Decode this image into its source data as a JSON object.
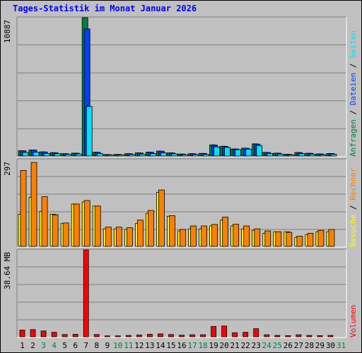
{
  "title": "Tages-Statistik im Monat Januar 2026",
  "colors": {
    "anfragen": "#008040",
    "dateien": "#0040ff",
    "seiten": "#00e0ff",
    "besuche": "#ffff00",
    "rechner": "#ff8000",
    "volumen": "#ff0000",
    "weekday_label": "#000000",
    "weekend_label": "#008040"
  },
  "chart_data": [
    {
      "type": "bar",
      "panel": "top",
      "ymax_label": "10887",
      "ylim": [
        0,
        10887
      ],
      "right_label_parts": [
        {
          "text": "Anfragen",
          "color": "#008040"
        },
        {
          "text": "Dateien",
          "color": "#0040ff"
        },
        {
          "text": "Seiten",
          "color": "#00e0ff"
        }
      ],
      "series": [
        {
          "name": "Anfragen",
          "color": "#008040",
          "values": [
            420,
            480,
            330,
            270,
            190,
            230,
            10887,
            300,
            120,
            130,
            190,
            250,
            310,
            390,
            250,
            160,
            190,
            210,
            880,
            770,
            560,
            620,
            960,
            290,
            230,
            140,
            280,
            220,
            170,
            200
          ]
        },
        {
          "name": "Dateien",
          "color": "#0040ff",
          "values": [
            410,
            470,
            320,
            260,
            180,
            220,
            10000,
            290,
            110,
            120,
            180,
            240,
            300,
            380,
            240,
            150,
            180,
            200,
            860,
            750,
            550,
            610,
            940,
            280,
            220,
            130,
            270,
            210,
            160,
            190
          ]
        },
        {
          "name": "Seiten",
          "color": "#00e0ff",
          "values": [
            280,
            300,
            200,
            180,
            130,
            160,
            3900,
            200,
            80,
            90,
            120,
            150,
            190,
            250,
            170,
            110,
            120,
            130,
            720,
            680,
            500,
            540,
            830,
            200,
            150,
            90,
            180,
            140,
            110,
            140
          ]
        }
      ],
      "grid": true
    },
    {
      "type": "bar",
      "panel": "middle",
      "ymax_label": "297",
      "ylim": [
        0,
        297
      ],
      "right_label_parts": [
        {
          "text": "Besuche",
          "color": "#ffff00"
        },
        {
          "text": "Rechner",
          "color": "#ff8000"
        }
      ],
      "series": [
        {
          "name": "Besuche",
          "color": "#ffff00",
          "values": [
            110,
            168,
            120,
            110,
            78,
            145,
            152,
            138,
            60,
            60,
            58,
            78,
            113,
            185,
            103,
            53,
            60,
            60,
            70,
            90,
            70,
            60,
            55,
            45,
            50,
            50,
            30,
            40,
            50,
            50
          ]
        },
        {
          "name": "Rechner",
          "color": "#ff8000",
          "values": [
            260,
            287,
            170,
            108,
            80,
            145,
            157,
            138,
            66,
            66,
            64,
            90,
            123,
            193,
            105,
            58,
            70,
            70,
            75,
            100,
            76,
            70,
            60,
            53,
            50,
            48,
            35,
            45,
            55,
            58
          ]
        }
      ],
      "grid": true
    },
    {
      "type": "bar",
      "panel": "bottom",
      "ymax_label": "38.64 MB",
      "ylim": [
        0,
        38.64
      ],
      "right_label_parts": [
        {
          "text": "Volumen",
          "color": "#ff0000"
        }
      ],
      "series": [
        {
          "name": "Volumen",
          "color": "#ff0000",
          "values": [
            3.0,
            3.2,
            2.6,
            2.0,
            1.0,
            1.1,
            38.64,
            1.0,
            0.4,
            0.4,
            0.6,
            0.8,
            1.1,
            1.3,
            1.0,
            0.7,
            0.9,
            0.9,
            4.6,
            4.8,
            1.8,
            2.0,
            3.6,
            0.9,
            0.6,
            0.5,
            0.9,
            0.6,
            0.5,
            0.6
          ]
        }
      ],
      "grid": true
    }
  ],
  "days": [
    {
      "label": "1",
      "weekend": false
    },
    {
      "label": "2",
      "weekend": false
    },
    {
      "label": "3",
      "weekend": true
    },
    {
      "label": "4",
      "weekend": true
    },
    {
      "label": "5",
      "weekend": false
    },
    {
      "label": "6",
      "weekend": false
    },
    {
      "label": "7",
      "weekend": false
    },
    {
      "label": "8",
      "weekend": false
    },
    {
      "label": "9",
      "weekend": false
    },
    {
      "label": "10",
      "weekend": true
    },
    {
      "label": "11",
      "weekend": true
    },
    {
      "label": "12",
      "weekend": false
    },
    {
      "label": "13",
      "weekend": false
    },
    {
      "label": "14",
      "weekend": false
    },
    {
      "label": "15",
      "weekend": false
    },
    {
      "label": "16",
      "weekend": false
    },
    {
      "label": "17",
      "weekend": true
    },
    {
      "label": "18",
      "weekend": true
    },
    {
      "label": "19",
      "weekend": false
    },
    {
      "label": "20",
      "weekend": false
    },
    {
      "label": "21",
      "weekend": false
    },
    {
      "label": "22",
      "weekend": false
    },
    {
      "label": "23",
      "weekend": false
    },
    {
      "label": "24",
      "weekend": true
    },
    {
      "label": "25",
      "weekend": true
    },
    {
      "label": "26",
      "weekend": false
    },
    {
      "label": "27",
      "weekend": false
    },
    {
      "label": "28",
      "weekend": false
    },
    {
      "label": "29",
      "weekend": false
    },
    {
      "label": "30",
      "weekend": false
    },
    {
      "label": "31",
      "weekend": true
    }
  ]
}
